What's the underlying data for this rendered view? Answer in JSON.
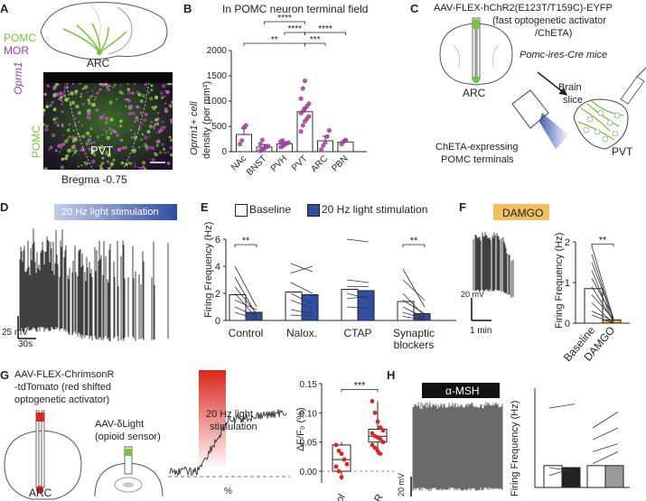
{
  "panels": {
    "A": {
      "letter": "A",
      "legend_pomc": "POMC",
      "legend_mor": "MOR",
      "region_arc": "ARC",
      "micro_side_oprm1": "Oprm1",
      "micro_side_pomc": "POMC",
      "micro_pvt": "PVT",
      "bregma": "Bregma -0.75"
    },
    "B": {
      "letter": "B",
      "title": "In POMC neuron terminal field",
      "ylabel": "Oprm1+ cell density (per mm²)",
      "ylabel_line1": "Oprm1+ cell",
      "ylabel_line2": "density (per mm²)",
      "sig": [
        "****",
        "****",
        "****",
        "**",
        "***"
      ]
    },
    "C": {
      "letter": "C",
      "virus": "AAV-FLEX-hChR2(E123T/T159C)-EYFP",
      "desc1": "(fast optogenetic activator",
      "desc2": "/ChETA)",
      "mice": "Pomc-ires-Cre mice",
      "arc": "ARC",
      "brain_slice1": "Brain",
      "brain_slice2": "slice",
      "terminals1": "ChETA-expressing",
      "terminals2": "POMC terminals",
      "pvt": "PVT"
    },
    "D": {
      "letter": "D",
      "stim": "20 Hz light stimulation",
      "scale_y": "25 mV",
      "scale_x": "30s"
    },
    "E": {
      "letter": "E",
      "legend_baseline": "Baseline",
      "legend_stim": "20 Hz light stimulation",
      "ylabel": "Firing Frequency (Hz)",
      "sig1": "**",
      "sig2": "**"
    },
    "F": {
      "letter": "F",
      "drug": "DAMGO",
      "scale_y": "20 mV",
      "scale_x": "1 min",
      "ylabel": "Firing Frequency (Hz)",
      "sig": "**"
    },
    "G": {
      "letter": "G",
      "virus1": "AAV-FLEX-ChrimsonR",
      "virus2": "-tdTomato (red shifted",
      "virus3": "optogenetic activator)",
      "sensor1": "AAV-δLight",
      "sensor2": "(opioid sensor)",
      "arc": "ARC",
      "stim1": "20 Hz light",
      "stim2": "stimulation",
      "ylabel": "ΔF/F₀ (%)",
      "sig": "***",
      "x_frag1": "ol",
      "x_frag2": "nR",
      "trace_frag": "%"
    },
    "H": {
      "letter": "H",
      "drug": "α-MSH",
      "scale_y": "20 mV",
      "ylabel": "Firing Frequency (Hz)"
    }
  },
  "colors": {
    "pomc_green": "#7ac143",
    "mor_magenta": "#a03ea0",
    "stim_blue": "#2e4fa3",
    "damgo_orange": "#f0a830",
    "red": "#d9261c",
    "grey_bar": "#999999",
    "dark_bar": "#222222"
  },
  "chart_data": [
    {
      "panel": "B",
      "type": "bar",
      "title": "In POMC neuron terminal field",
      "categories": [
        "NAc",
        "BNST",
        "PVH",
        "PVT",
        "ARC",
        "PBN"
      ],
      "values": [
        340,
        90,
        155,
        790,
        215,
        190
      ],
      "errors": [
        120,
        50,
        40,
        80,
        90,
        40
      ],
      "ylabel": "Oprm1+ cell density (per mm²)",
      "ylim": [
        0,
        2000
      ],
      "yticks": [
        "0",
        "500",
        "1000",
        "1500",
        "2000"
      ],
      "points": [
        [
          150,
          220,
          480,
          520
        ],
        [
          20,
          40,
          60,
          90,
          110,
          150,
          230
        ],
        [
          90,
          110,
          140,
          160,
          180,
          200,
          220
        ],
        [
          400,
          520,
          600,
          650,
          700,
          760,
          800,
          850,
          900,
          950,
          1050,
          1250,
          1400
        ],
        [
          40,
          120,
          180,
          300,
          420
        ],
        [
          150,
          200,
          230
        ]
      ],
      "comparisons": [
        {
          "pair": [
            "BNST",
            "PVT"
          ],
          "label": "****"
        },
        {
          "pair": [
            "PVT",
            "PBN"
          ],
          "label": "****"
        },
        {
          "pair": [
            "PVH",
            "PVT"
          ],
          "label": "****"
        },
        {
          "pair": [
            "NAc",
            "PVT"
          ],
          "label": "**"
        },
        {
          "pair": [
            "PVT",
            "ARC"
          ],
          "label": "***"
        }
      ]
    },
    {
      "panel": "E",
      "type": "bar",
      "categories": [
        "Control",
        "Nalox.",
        "CTAP",
        "Synaptic blockers"
      ],
      "category_labels": [
        [
          "Control"
        ],
        [
          "Nalox."
        ],
        [
          "CTAP"
        ],
        [
          "Synaptic",
          "blockers"
        ]
      ],
      "series": [
        {
          "name": "Baseline",
          "values": [
            1.9,
            2.1,
            2.3,
            1.4
          ]
        },
        {
          "name": "20 Hz light stimulation",
          "values": [
            0.6,
            1.9,
            2.2,
            0.5
          ]
        }
      ],
      "ylabel": "Firing Frequency (Hz)",
      "ylim": [
        0,
        6
      ],
      "yticks": [
        "0",
        "2",
        "4",
        "6"
      ],
      "pairs": [
        [
          [
            4.0,
            1.0
          ],
          [
            3.2,
            0.4
          ],
          [
            2.5,
            0.5
          ],
          [
            2.0,
            0.2
          ],
          [
            1.5,
            0.8
          ],
          [
            1.0,
            0.3
          ],
          [
            0.6,
            0.1
          ]
        ],
        [
          [
            4.2,
            3.6
          ],
          [
            3.5,
            4.0
          ],
          [
            2.8,
            2.0
          ],
          [
            2.0,
            1.2
          ],
          [
            1.5,
            0.9
          ],
          [
            0.8,
            0.5
          ],
          [
            0.4,
            0.3
          ]
        ],
        [
          [
            6.0,
            5.8
          ],
          [
            3.0,
            2.8
          ],
          [
            2.5,
            2.5
          ],
          [
            2.0,
            1.6
          ],
          [
            1.6,
            1.8
          ],
          [
            1.0,
            0.9
          ]
        ],
        [
          [
            3.8,
            1.0
          ],
          [
            3.0,
            1.5
          ],
          [
            2.0,
            0.3
          ],
          [
            1.5,
            0.5
          ],
          [
            1.0,
            0.2
          ],
          [
            0.6,
            0.1
          ],
          [
            0.3,
            0.05
          ]
        ]
      ]
    },
    {
      "panel": "F",
      "type": "bar",
      "categories": [
        "Baseline",
        "DAMGO"
      ],
      "values": [
        0.85,
        0.08
      ],
      "ylabel": "Firing Frequency (Hz)",
      "ylim": [
        0,
        2
      ],
      "yticks": [
        "0",
        "1",
        "2"
      ],
      "pairs": [
        [
          1.9,
          0.1
        ],
        [
          1.7,
          0.05
        ],
        [
          1.5,
          0.1
        ],
        [
          1.3,
          0.0
        ],
        [
          1.1,
          0.15
        ],
        [
          0.9,
          0.05
        ],
        [
          0.7,
          0.1
        ],
        [
          0.5,
          0.0
        ],
        [
          0.3,
          0.05
        ],
        [
          0.2,
          0.0
        ]
      ]
    },
    {
      "panel": "G",
      "type": "scatter",
      "ylabel": "ΔF/F₀ (%)",
      "ylim": [
        -0.02,
        0.15
      ],
      "yticks": [
        "0.00",
        "0.05",
        "0.10",
        "0.15"
      ],
      "groups": [
        {
          "median": 0.02,
          "q1": 0.0,
          "q3": 0.045,
          "whisker": [
            -0.015,
            0.05
          ],
          "points": [
            0.045,
            0.035,
            0.03,
            0.02,
            0.012,
            0.008,
            0.0,
            -0.01
          ]
        },
        {
          "median": 0.06,
          "q1": 0.05,
          "q3": 0.072,
          "whisker": [
            0.028,
            0.12
          ],
          "points": [
            0.12,
            0.1,
            0.085,
            0.075,
            0.07,
            0.065,
            0.06,
            0.058,
            0.055,
            0.05,
            0.045,
            0.04,
            0.035,
            0.03
          ]
        }
      ]
    },
    {
      "panel": "H",
      "type": "bar",
      "ylabel": "Firing Frequency (Hz)",
      "ylim": [
        0,
        2.5
      ],
      "values": [
        0.55,
        0.5,
        0.55,
        0.55
      ],
      "pairs_left": [
        [
          2.0,
          2.1
        ],
        [
          0.5,
          0.4
        ],
        [
          0.3,
          0.5
        ]
      ],
      "pairs_right": [
        [
          1.5,
          1.9
        ],
        [
          1.2,
          1.5
        ],
        [
          0.9,
          1.1
        ],
        [
          0.6,
          0.9
        ]
      ]
    }
  ]
}
